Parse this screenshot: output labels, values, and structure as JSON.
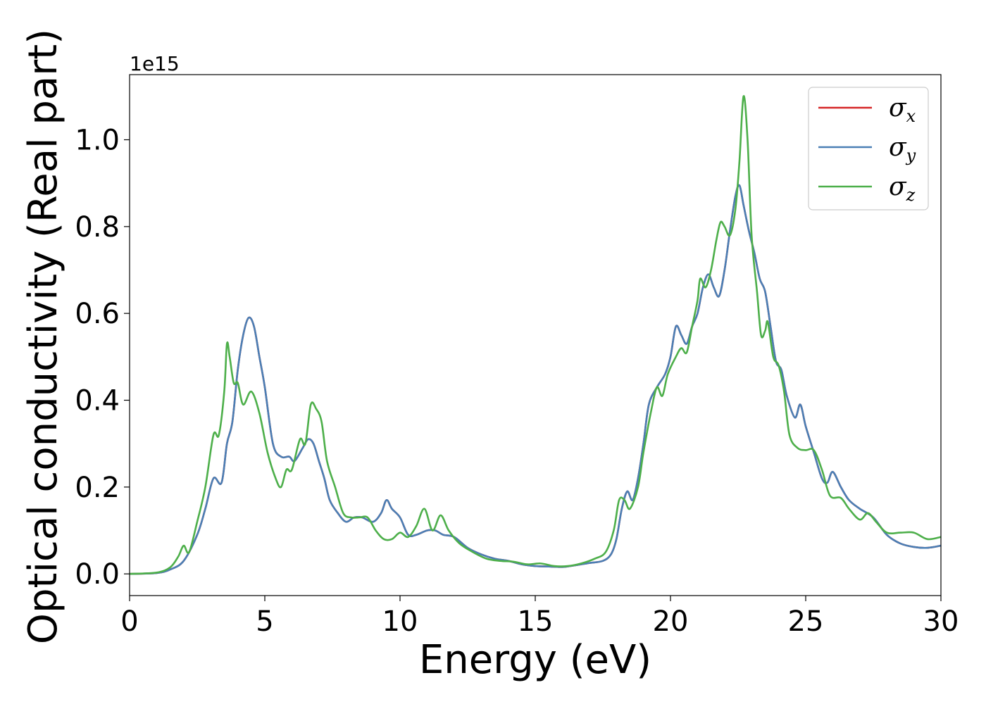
{
  "chart_data": {
    "type": "line",
    "xlabel": "Energy (eV)",
    "ylabel": "Optical conductivity (Real part)",
    "y_offset_text": "1e15",
    "xlim": [
      0,
      30
    ],
    "ylim": [
      -0.05,
      1.15
    ],
    "x_ticks": [
      0,
      5,
      10,
      15,
      20,
      25,
      30
    ],
    "x_tick_labels": [
      "0",
      "5",
      "10",
      "15",
      "20",
      "25",
      "30"
    ],
    "y_ticks": [
      0.0,
      0.2,
      0.4,
      0.6,
      0.8,
      1.0
    ],
    "y_tick_labels": [
      "0.0",
      "0.2",
      "0.4",
      "0.6",
      "0.8",
      "1.0"
    ],
    "grid": false,
    "legend_position": "top-right",
    "series": [
      {
        "name": "σx",
        "symbol": "σ",
        "subscript": "x",
        "color": "#d62728",
        "points": [
          [
            0,
            0
          ],
          [
            1,
            0.002
          ],
          [
            1.5,
            0.01
          ],
          [
            2,
            0.03
          ],
          [
            2.5,
            0.09
          ],
          [
            2.8,
            0.15
          ],
          [
            3.1,
            0.22
          ],
          [
            3.4,
            0.21
          ],
          [
            3.6,
            0.3
          ],
          [
            3.8,
            0.35
          ],
          [
            4.0,
            0.47
          ],
          [
            4.2,
            0.55
          ],
          [
            4.4,
            0.59
          ],
          [
            4.6,
            0.57
          ],
          [
            4.8,
            0.5
          ],
          [
            5.0,
            0.43
          ],
          [
            5.3,
            0.3
          ],
          [
            5.6,
            0.27
          ],
          [
            5.9,
            0.27
          ],
          [
            6.1,
            0.26
          ],
          [
            6.4,
            0.29
          ],
          [
            6.6,
            0.31
          ],
          [
            6.8,
            0.3
          ],
          [
            7.0,
            0.26
          ],
          [
            7.2,
            0.22
          ],
          [
            7.4,
            0.17
          ],
          [
            7.7,
            0.14
          ],
          [
            8.0,
            0.12
          ],
          [
            8.3,
            0.13
          ],
          [
            8.6,
            0.13
          ],
          [
            9.0,
            0.12
          ],
          [
            9.3,
            0.14
          ],
          [
            9.5,
            0.17
          ],
          [
            9.7,
            0.15
          ],
          [
            10.0,
            0.13
          ],
          [
            10.3,
            0.09
          ],
          [
            10.6,
            0.09
          ],
          [
            11.0,
            0.1
          ],
          [
            11.3,
            0.1
          ],
          [
            11.6,
            0.09
          ],
          [
            12.0,
            0.085
          ],
          [
            12.5,
            0.06
          ],
          [
            13.0,
            0.045
          ],
          [
            13.5,
            0.035
          ],
          [
            14.0,
            0.03
          ],
          [
            14.5,
            0.022
          ],
          [
            15.0,
            0.018
          ],
          [
            15.5,
            0.017
          ],
          [
            16.0,
            0.016
          ],
          [
            16.5,
            0.02
          ],
          [
            17.0,
            0.025
          ],
          [
            17.5,
            0.03
          ],
          [
            17.8,
            0.045
          ],
          [
            18.0,
            0.08
          ],
          [
            18.2,
            0.15
          ],
          [
            18.4,
            0.19
          ],
          [
            18.6,
            0.17
          ],
          [
            18.8,
            0.22
          ],
          [
            19.0,
            0.3
          ],
          [
            19.2,
            0.39
          ],
          [
            19.5,
            0.43
          ],
          [
            19.8,
            0.46
          ],
          [
            20.0,
            0.5
          ],
          [
            20.2,
            0.57
          ],
          [
            20.4,
            0.55
          ],
          [
            20.6,
            0.53
          ],
          [
            20.8,
            0.57
          ],
          [
            21.0,
            0.6
          ],
          [
            21.2,
            0.66
          ],
          [
            21.4,
            0.69
          ],
          [
            21.6,
            0.66
          ],
          [
            21.8,
            0.64
          ],
          [
            22.0,
            0.7
          ],
          [
            22.2,
            0.79
          ],
          [
            22.4,
            0.87
          ],
          [
            22.55,
            0.895
          ],
          [
            22.7,
            0.85
          ],
          [
            22.9,
            0.79
          ],
          [
            23.1,
            0.74
          ],
          [
            23.3,
            0.68
          ],
          [
            23.5,
            0.65
          ],
          [
            23.7,
            0.57
          ],
          [
            23.9,
            0.49
          ],
          [
            24.1,
            0.47
          ],
          [
            24.3,
            0.41
          ],
          [
            24.6,
            0.36
          ],
          [
            24.8,
            0.39
          ],
          [
            25.0,
            0.34
          ],
          [
            25.3,
            0.28
          ],
          [
            25.6,
            0.22
          ],
          [
            25.8,
            0.21
          ],
          [
            26.0,
            0.235
          ],
          [
            26.3,
            0.2
          ],
          [
            26.6,
            0.17
          ],
          [
            27.0,
            0.15
          ],
          [
            27.5,
            0.13
          ],
          [
            28.0,
            0.09
          ],
          [
            28.5,
            0.07
          ],
          [
            29.0,
            0.062
          ],
          [
            29.5,
            0.06
          ],
          [
            30,
            0.065
          ]
        ]
      },
      {
        "name": "σy",
        "symbol": "σ",
        "subscript": "y",
        "color": "#4a7fb5",
        "points": [
          [
            0,
            0
          ],
          [
            1,
            0.002
          ],
          [
            1.5,
            0.01
          ],
          [
            2,
            0.03
          ],
          [
            2.5,
            0.09
          ],
          [
            2.8,
            0.15
          ],
          [
            3.1,
            0.22
          ],
          [
            3.4,
            0.21
          ],
          [
            3.6,
            0.3
          ],
          [
            3.8,
            0.35
          ],
          [
            4.0,
            0.47
          ],
          [
            4.2,
            0.55
          ],
          [
            4.4,
            0.59
          ],
          [
            4.6,
            0.57
          ],
          [
            4.8,
            0.5
          ],
          [
            5.0,
            0.43
          ],
          [
            5.3,
            0.3
          ],
          [
            5.6,
            0.27
          ],
          [
            5.9,
            0.27
          ],
          [
            6.1,
            0.26
          ],
          [
            6.4,
            0.29
          ],
          [
            6.6,
            0.31
          ],
          [
            6.8,
            0.3
          ],
          [
            7.0,
            0.26
          ],
          [
            7.2,
            0.22
          ],
          [
            7.4,
            0.17
          ],
          [
            7.7,
            0.14
          ],
          [
            8.0,
            0.12
          ],
          [
            8.3,
            0.13
          ],
          [
            8.6,
            0.13
          ],
          [
            9.0,
            0.12
          ],
          [
            9.3,
            0.14
          ],
          [
            9.5,
            0.17
          ],
          [
            9.7,
            0.15
          ],
          [
            10.0,
            0.13
          ],
          [
            10.3,
            0.09
          ],
          [
            10.6,
            0.09
          ],
          [
            11.0,
            0.1
          ],
          [
            11.3,
            0.1
          ],
          [
            11.6,
            0.09
          ],
          [
            12.0,
            0.085
          ],
          [
            12.5,
            0.06
          ],
          [
            13.0,
            0.045
          ],
          [
            13.5,
            0.035
          ],
          [
            14.0,
            0.03
          ],
          [
            14.5,
            0.022
          ],
          [
            15.0,
            0.018
          ],
          [
            15.5,
            0.017
          ],
          [
            16.0,
            0.016
          ],
          [
            16.5,
            0.02
          ],
          [
            17.0,
            0.025
          ],
          [
            17.5,
            0.03
          ],
          [
            17.8,
            0.045
          ],
          [
            18.0,
            0.08
          ],
          [
            18.2,
            0.15
          ],
          [
            18.4,
            0.19
          ],
          [
            18.6,
            0.17
          ],
          [
            18.8,
            0.22
          ],
          [
            19.0,
            0.3
          ],
          [
            19.2,
            0.39
          ],
          [
            19.5,
            0.43
          ],
          [
            19.8,
            0.46
          ],
          [
            20.0,
            0.5
          ],
          [
            20.2,
            0.57
          ],
          [
            20.4,
            0.55
          ],
          [
            20.6,
            0.53
          ],
          [
            20.8,
            0.57
          ],
          [
            21.0,
            0.6
          ],
          [
            21.2,
            0.66
          ],
          [
            21.4,
            0.69
          ],
          [
            21.6,
            0.66
          ],
          [
            21.8,
            0.64
          ],
          [
            22.0,
            0.7
          ],
          [
            22.2,
            0.79
          ],
          [
            22.4,
            0.87
          ],
          [
            22.55,
            0.895
          ],
          [
            22.7,
            0.85
          ],
          [
            22.9,
            0.79
          ],
          [
            23.1,
            0.74
          ],
          [
            23.3,
            0.68
          ],
          [
            23.5,
            0.65
          ],
          [
            23.7,
            0.57
          ],
          [
            23.9,
            0.49
          ],
          [
            24.1,
            0.47
          ],
          [
            24.3,
            0.41
          ],
          [
            24.6,
            0.36
          ],
          [
            24.8,
            0.39
          ],
          [
            25.0,
            0.34
          ],
          [
            25.3,
            0.28
          ],
          [
            25.6,
            0.22
          ],
          [
            25.8,
            0.21
          ],
          [
            26.0,
            0.235
          ],
          [
            26.3,
            0.2
          ],
          [
            26.6,
            0.17
          ],
          [
            27.0,
            0.15
          ],
          [
            27.5,
            0.13
          ],
          [
            28.0,
            0.09
          ],
          [
            28.5,
            0.07
          ],
          [
            29.0,
            0.062
          ],
          [
            29.5,
            0.06
          ],
          [
            30,
            0.065
          ]
        ]
      },
      {
        "name": "σz",
        "symbol": "σ",
        "subscript": "z",
        "color": "#4daf4a",
        "points": [
          [
            0,
            0
          ],
          [
            1,
            0.003
          ],
          [
            1.5,
            0.015
          ],
          [
            1.8,
            0.04
          ],
          [
            2.0,
            0.065
          ],
          [
            2.2,
            0.05
          ],
          [
            2.5,
            0.12
          ],
          [
            2.8,
            0.2
          ],
          [
            3.1,
            0.32
          ],
          [
            3.3,
            0.32
          ],
          [
            3.5,
            0.42
          ],
          [
            3.6,
            0.53
          ],
          [
            3.7,
            0.5
          ],
          [
            3.85,
            0.44
          ],
          [
            4.0,
            0.44
          ],
          [
            4.2,
            0.39
          ],
          [
            4.5,
            0.42
          ],
          [
            4.8,
            0.37
          ],
          [
            5.1,
            0.28
          ],
          [
            5.4,
            0.22
          ],
          [
            5.6,
            0.2
          ],
          [
            5.8,
            0.24
          ],
          [
            6.0,
            0.24
          ],
          [
            6.3,
            0.31
          ],
          [
            6.5,
            0.3
          ],
          [
            6.7,
            0.39
          ],
          [
            6.9,
            0.38
          ],
          [
            7.1,
            0.35
          ],
          [
            7.3,
            0.26
          ],
          [
            7.6,
            0.2
          ],
          [
            7.9,
            0.14
          ],
          [
            8.2,
            0.13
          ],
          [
            8.5,
            0.13
          ],
          [
            8.8,
            0.13
          ],
          [
            9.1,
            0.1
          ],
          [
            9.4,
            0.08
          ],
          [
            9.7,
            0.08
          ],
          [
            10.0,
            0.095
          ],
          [
            10.3,
            0.085
          ],
          [
            10.6,
            0.11
          ],
          [
            10.9,
            0.15
          ],
          [
            11.2,
            0.1
          ],
          [
            11.5,
            0.135
          ],
          [
            11.8,
            0.1
          ],
          [
            12.2,
            0.07
          ],
          [
            12.7,
            0.05
          ],
          [
            13.2,
            0.035
          ],
          [
            13.7,
            0.03
          ],
          [
            14.2,
            0.028
          ],
          [
            14.7,
            0.022
          ],
          [
            15.2,
            0.024
          ],
          [
            15.7,
            0.018
          ],
          [
            16.2,
            0.018
          ],
          [
            16.7,
            0.024
          ],
          [
            17.2,
            0.035
          ],
          [
            17.6,
            0.05
          ],
          [
            17.9,
            0.1
          ],
          [
            18.1,
            0.17
          ],
          [
            18.3,
            0.17
          ],
          [
            18.5,
            0.15
          ],
          [
            18.8,
            0.2
          ],
          [
            19.0,
            0.28
          ],
          [
            19.3,
            0.38
          ],
          [
            19.5,
            0.43
          ],
          [
            19.7,
            0.41
          ],
          [
            19.9,
            0.46
          ],
          [
            20.2,
            0.5
          ],
          [
            20.4,
            0.52
          ],
          [
            20.6,
            0.51
          ],
          [
            20.8,
            0.57
          ],
          [
            21.0,
            0.63
          ],
          [
            21.1,
            0.68
          ],
          [
            21.3,
            0.66
          ],
          [
            21.5,
            0.7
          ],
          [
            21.7,
            0.77
          ],
          [
            21.85,
            0.81
          ],
          [
            22.0,
            0.8
          ],
          [
            22.2,
            0.78
          ],
          [
            22.4,
            0.84
          ],
          [
            22.55,
            0.95
          ],
          [
            22.7,
            1.1
          ],
          [
            22.85,
            1.0
          ],
          [
            23.0,
            0.78
          ],
          [
            23.2,
            0.65
          ],
          [
            23.35,
            0.55
          ],
          [
            23.5,
            0.56
          ],
          [
            23.6,
            0.58
          ],
          [
            23.8,
            0.5
          ],
          [
            24.0,
            0.48
          ],
          [
            24.2,
            0.42
          ],
          [
            24.4,
            0.32
          ],
          [
            24.7,
            0.29
          ],
          [
            25.0,
            0.285
          ],
          [
            25.3,
            0.285
          ],
          [
            25.6,
            0.24
          ],
          [
            25.9,
            0.18
          ],
          [
            26.3,
            0.175
          ],
          [
            26.6,
            0.15
          ],
          [
            27.0,
            0.125
          ],
          [
            27.3,
            0.14
          ],
          [
            27.6,
            0.12
          ],
          [
            28.0,
            0.095
          ],
          [
            28.5,
            0.095
          ],
          [
            29.0,
            0.095
          ],
          [
            29.5,
            0.08
          ],
          [
            30,
            0.085
          ]
        ]
      }
    ]
  }
}
